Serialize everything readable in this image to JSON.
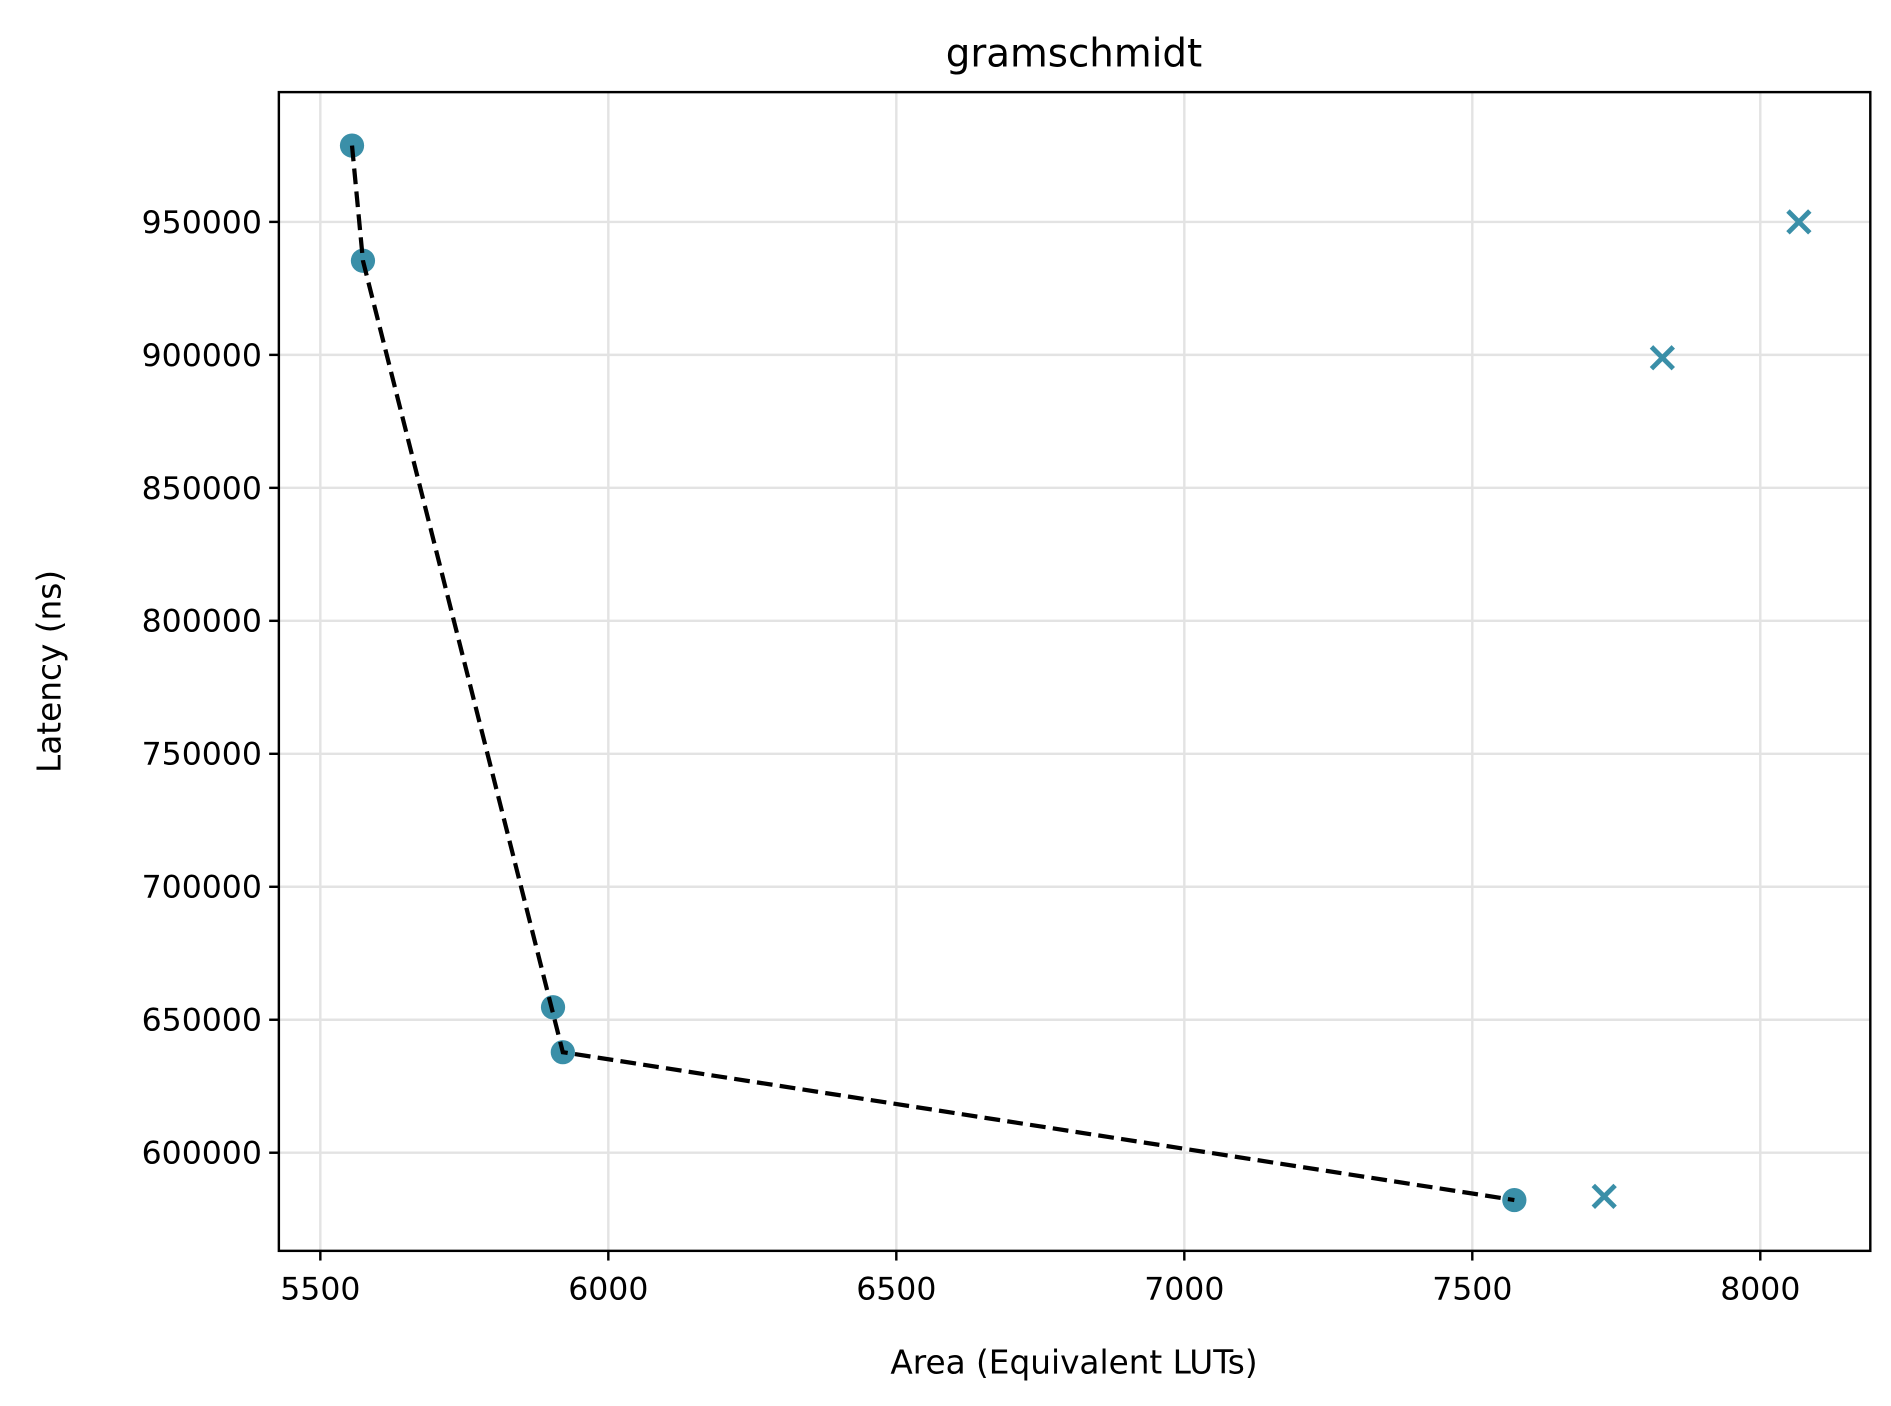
{
  "chart_data": {
    "type": "scatter",
    "title": "gramschmidt",
    "xlabel": "Area (Equivalent LUTs)",
    "ylabel": "Latency (ns)",
    "xlim": [
      5428,
      8191
    ],
    "ylim": [
      563100,
      998800
    ],
    "xticks": [
      5500,
      6000,
      6500,
      7000,
      7500,
      8000
    ],
    "yticks": [
      600000,
      650000,
      700000,
      750000,
      800000,
      850000,
      900000,
      950000
    ],
    "grid": true,
    "colors": {
      "points": "#3a8fa8",
      "frontier": "#000000"
    },
    "series": [
      {
        "marker": "circle",
        "points": [
          {
            "x": 5555,
            "y": 978700
          },
          {
            "x": 5574,
            "y": 935400
          },
          {
            "x": 5904,
            "y": 654700
          },
          {
            "x": 5921,
            "y": 637800
          },
          {
            "x": 7573,
            "y": 582200
          }
        ]
      },
      {
        "marker": "x",
        "points": [
          {
            "x": 7729,
            "y": 583600
          },
          {
            "x": 7830,
            "y": 898900
          },
          {
            "x": 8067,
            "y": 950000
          }
        ]
      },
      {
        "line": "dashed",
        "points": [
          {
            "x": 5555,
            "y": 978700
          },
          {
            "x": 5574,
            "y": 935400
          },
          {
            "x": 5921,
            "y": 637800
          },
          {
            "x": 7573,
            "y": 582200
          }
        ]
      }
    ]
  }
}
